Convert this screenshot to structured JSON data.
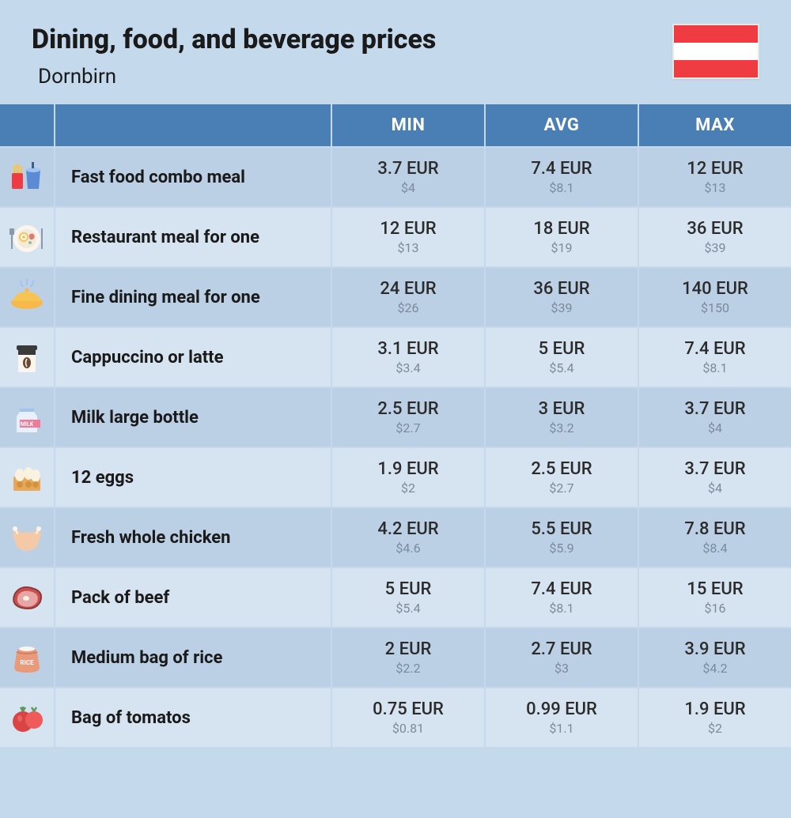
{
  "header": {
    "title": "Dining, food, and beverage prices",
    "subtitle": "Dornbirn",
    "flag_colors": [
      "#ef3b42",
      "#ffffff",
      "#ef3b42"
    ]
  },
  "columns": [
    "MIN",
    "AVG",
    "MAX"
  ],
  "colors": {
    "page_bg": "#c5d9ec",
    "header_bg": "#4a7fb5",
    "row_light": "#d6e3f0",
    "row_dark": "#bcd0e5",
    "text_primary": "#2b2b2b",
    "text_secondary": "#7a8a9a"
  },
  "rows": [
    {
      "icon": "fast-food",
      "label": "Fast food combo meal",
      "min": {
        "eur": "3.7 EUR",
        "usd": "$4"
      },
      "avg": {
        "eur": "7.4 EUR",
        "usd": "$8.1"
      },
      "max": {
        "eur": "12 EUR",
        "usd": "$13"
      }
    },
    {
      "icon": "restaurant-meal",
      "label": "Restaurant meal for one",
      "min": {
        "eur": "12 EUR",
        "usd": "$13"
      },
      "avg": {
        "eur": "18 EUR",
        "usd": "$19"
      },
      "max": {
        "eur": "36 EUR",
        "usd": "$39"
      }
    },
    {
      "icon": "fine-dining",
      "label": "Fine dining meal for one",
      "min": {
        "eur": "24 EUR",
        "usd": "$26"
      },
      "avg": {
        "eur": "36 EUR",
        "usd": "$39"
      },
      "max": {
        "eur": "140 EUR",
        "usd": "$150"
      }
    },
    {
      "icon": "coffee",
      "label": "Cappuccino or latte",
      "min": {
        "eur": "3.1 EUR",
        "usd": "$3.4"
      },
      "avg": {
        "eur": "5 EUR",
        "usd": "$5.4"
      },
      "max": {
        "eur": "7.4 EUR",
        "usd": "$8.1"
      }
    },
    {
      "icon": "milk",
      "label": "Milk large bottle",
      "min": {
        "eur": "2.5 EUR",
        "usd": "$2.7"
      },
      "avg": {
        "eur": "3 EUR",
        "usd": "$3.2"
      },
      "max": {
        "eur": "3.7 EUR",
        "usd": "$4"
      }
    },
    {
      "icon": "eggs",
      "label": "12 eggs",
      "min": {
        "eur": "1.9 EUR",
        "usd": "$2"
      },
      "avg": {
        "eur": "2.5 EUR",
        "usd": "$2.7"
      },
      "max": {
        "eur": "3.7 EUR",
        "usd": "$4"
      }
    },
    {
      "icon": "chicken",
      "label": "Fresh whole chicken",
      "min": {
        "eur": "4.2 EUR",
        "usd": "$4.6"
      },
      "avg": {
        "eur": "5.5 EUR",
        "usd": "$5.9"
      },
      "max": {
        "eur": "7.8 EUR",
        "usd": "$8.4"
      }
    },
    {
      "icon": "beef",
      "label": "Pack of beef",
      "min": {
        "eur": "5 EUR",
        "usd": "$5.4"
      },
      "avg": {
        "eur": "7.4 EUR",
        "usd": "$8.1"
      },
      "max": {
        "eur": "15 EUR",
        "usd": "$16"
      }
    },
    {
      "icon": "rice",
      "label": "Medium bag of rice",
      "min": {
        "eur": "2 EUR",
        "usd": "$2.2"
      },
      "avg": {
        "eur": "2.7 EUR",
        "usd": "$3"
      },
      "max": {
        "eur": "3.9 EUR",
        "usd": "$4.2"
      }
    },
    {
      "icon": "tomatoes",
      "label": "Bag of tomatos",
      "min": {
        "eur": "0.75 EUR",
        "usd": "$0.81"
      },
      "avg": {
        "eur": "0.99 EUR",
        "usd": "$1.1"
      },
      "max": {
        "eur": "1.9 EUR",
        "usd": "$2"
      }
    }
  ]
}
